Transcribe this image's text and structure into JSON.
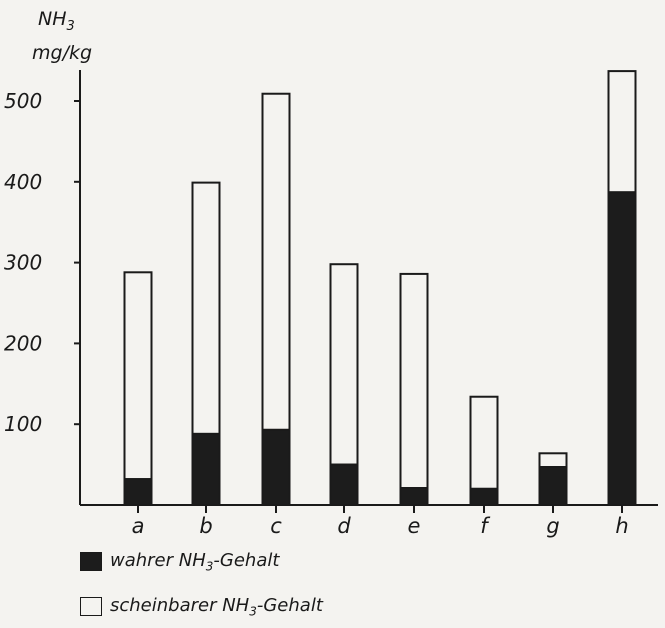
{
  "chart_data": {
    "type": "bar",
    "stacked": true,
    "ylabel_main": "NH",
    "ylabel_sub": "3",
    "yunit": "mg/kg",
    "ylim": [
      0,
      540
    ],
    "yticks": [
      "100",
      "200",
      "300",
      "400",
      "500"
    ],
    "categories": [
      "a",
      "b",
      "c",
      "d",
      "e",
      "f",
      "g",
      "h"
    ],
    "series": [
      {
        "name": "wahrer NH3-Gehalt",
        "values": [
          32,
          88,
          93,
          50,
          21,
          20,
          47,
          387
        ]
      },
      {
        "name": "scheinbarer NH3-Gehalt",
        "values": [
          256,
          311,
          416,
          248,
          265,
          114,
          17,
          150
        ]
      }
    ],
    "colors": {
      "dark": "#1c1c1c",
      "light": "#f4f3f0"
    }
  },
  "legend": {
    "dark_pre": "wahrer NH",
    "dark_sub": "3",
    "dark_post": "-Gehalt",
    "light_pre": "scheinbarer NH",
    "light_sub": "3",
    "light_post": "-Gehalt"
  }
}
